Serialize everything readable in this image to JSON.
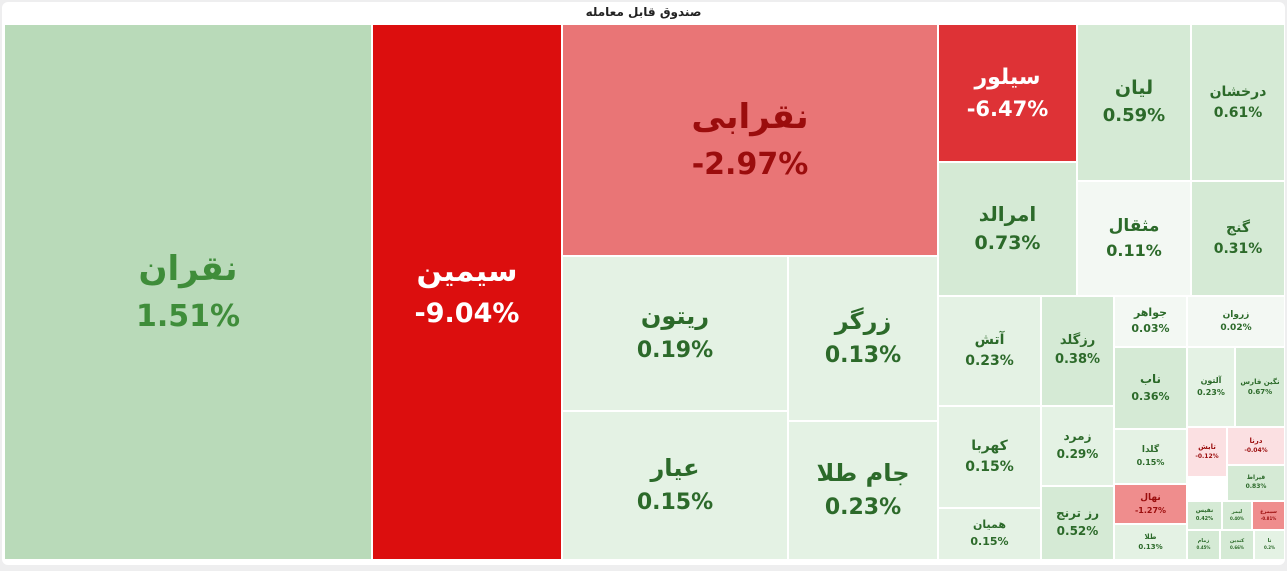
{
  "title": "صندوق قابل معامله",
  "colors": {
    "pos_strong": "#b9dab9",
    "pos_mid": "#d5ead5",
    "pos_light": "#e4f2e4",
    "neutral": "#f3f8f3",
    "neg_light": "#fbe0e2",
    "neg_soft": "#ef8d8d",
    "neg_mid": "#e97576",
    "neg_strong": "#de3236",
    "neg_max": "#dc0e0e",
    "text_pos": "#3f8d3a",
    "text_pos_dark": "#2c6a2a",
    "text_neg": "#9b0d0d",
    "text_white": "#ffffff"
  },
  "chart_data": {
    "type": "treemap",
    "title": "صندوق قابل معامله",
    "tiles": [
      {
        "name": "نقران",
        "change": "1.51%"
      },
      {
        "name": "سیمین",
        "change": "-9.04%"
      },
      {
        "name": "نقرابی",
        "change": "-2.97%"
      },
      {
        "name": "ریتون",
        "change": "0.19%"
      },
      {
        "name": "زرگر",
        "change": "0.13%"
      },
      {
        "name": "عیار",
        "change": "0.15%"
      },
      {
        "name": "جام طلا",
        "change": "0.23%"
      },
      {
        "name": "سیلور",
        "change": "-6.47%"
      },
      {
        "name": "لیان",
        "change": "0.59%"
      },
      {
        "name": "درخشان",
        "change": "0.61%"
      },
      {
        "name": "امرالد",
        "change": "0.73%"
      },
      {
        "name": "مثقال",
        "change": "0.11%"
      },
      {
        "name": "گنج",
        "change": "0.31%"
      },
      {
        "name": "آتش",
        "change": "0.23%"
      },
      {
        "name": "رزگلد",
        "change": "0.38%"
      },
      {
        "name": "جواهر",
        "change": "0.03%"
      },
      {
        "name": "زروان",
        "change": "0.02%"
      },
      {
        "name": "ناب",
        "change": "0.36%"
      },
      {
        "name": "آلتون",
        "change": "0.23%"
      },
      {
        "name": "نگین فارس",
        "change": "0.67%"
      },
      {
        "name": "کهربا",
        "change": "0.15%"
      },
      {
        "name": "زمرد",
        "change": "0.29%"
      },
      {
        "name": "گلدا",
        "change": "0.15%"
      },
      {
        "name": "تابش",
        "change": "-0.12%"
      },
      {
        "name": "درنا",
        "change": "-0.04%"
      },
      {
        "name": "قیراط",
        "change": "0.83%"
      },
      {
        "name": "همیان",
        "change": "0.15%"
      },
      {
        "name": "رز ترنج",
        "change": "0.52%"
      },
      {
        "name": "نهال",
        "change": "-1.27%"
      },
      {
        "name": "طلا",
        "change": "0.13%"
      },
      {
        "name": "نفیس",
        "change": "0.42%"
      },
      {
        "name": "لیمر",
        "change": "0.40%"
      },
      {
        "name": "سیمرغ",
        "change": "-0.81%"
      },
      {
        "name": "زمام",
        "change": "0.45%"
      },
      {
        "name": "کندین",
        "change": "0.66%"
      },
      {
        "name": "تا",
        "change": "0.2%"
      }
    ]
  }
}
